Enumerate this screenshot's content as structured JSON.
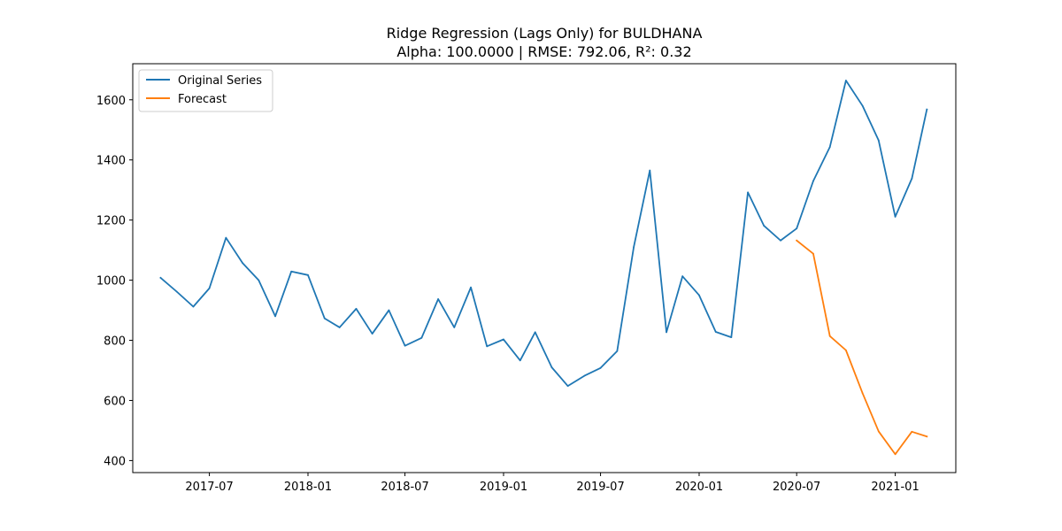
{
  "colors": {
    "original": "#1f77b4",
    "forecast": "#ff7f0e"
  },
  "chart_data": {
    "type": "line",
    "title": "Ridge Regression (Lags Only) for BULDHANA",
    "subtitle": "Alpha: 100.0000 | RMSE: 792.06, R²: 0.32",
    "xlabel": "",
    "ylabel": "",
    "xlim": [
      "2017-02-08",
      "2021-04-24"
    ],
    "ylim": [
      360,
      1720
    ],
    "grid": false,
    "legend_position": "top-left",
    "x_ticks": [
      "2017-07",
      "2018-01",
      "2018-07",
      "2019-01",
      "2019-07",
      "2020-01",
      "2020-07",
      "2021-01"
    ],
    "y_ticks": [
      400,
      600,
      800,
      1000,
      1200,
      1400,
      1600
    ],
    "series": [
      {
        "name": "Original Series",
        "color": "#1f77b4",
        "x": [
          "2017-04",
          "2017-05",
          "2017-06",
          "2017-07",
          "2017-08",
          "2017-09",
          "2017-10",
          "2017-11",
          "2017-12",
          "2018-01",
          "2018-02",
          "2018-03",
          "2018-04",
          "2018-05",
          "2018-06",
          "2018-07",
          "2018-08",
          "2018-09",
          "2018-10",
          "2018-11",
          "2018-12",
          "2019-01",
          "2019-02",
          "2019-03",
          "2019-04",
          "2019-05",
          "2019-06",
          "2019-07",
          "2019-08",
          "2019-09",
          "2019-10",
          "2019-11",
          "2019-12",
          "2020-01",
          "2020-02",
          "2020-03",
          "2020-04",
          "2020-05",
          "2020-06",
          "2020-07",
          "2020-08",
          "2020-09",
          "2020-10",
          "2020-11",
          "2020-12",
          "2021-01",
          "2021-02",
          "2021-03"
        ],
        "values": [
          1008,
          962,
          912,
          973,
          1141,
          1057,
          1000,
          880,
          1029,
          1017,
          873,
          843,
          905,
          822,
          900,
          782,
          808,
          937,
          843,
          976,
          780,
          803,
          733,
          827,
          710,
          648,
          682,
          708,
          764,
          1110,
          1365,
          827,
          1013,
          950,
          828,
          810,
          1292,
          1181,
          1132,
          1172,
          1330,
          1443,
          1664,
          1580,
          1465,
          1211,
          1338,
          1568
        ]
      },
      {
        "name": "Forecast",
        "color": "#ff7f0e",
        "x": [
          "2020-07",
          "2020-08",
          "2020-09",
          "2020-10",
          "2020-11",
          "2020-12",
          "2021-01",
          "2021-02",
          "2021-03"
        ],
        "values": [
          1132,
          1088,
          814,
          767,
          624,
          497,
          421,
          496,
          480
        ]
      }
    ]
  }
}
